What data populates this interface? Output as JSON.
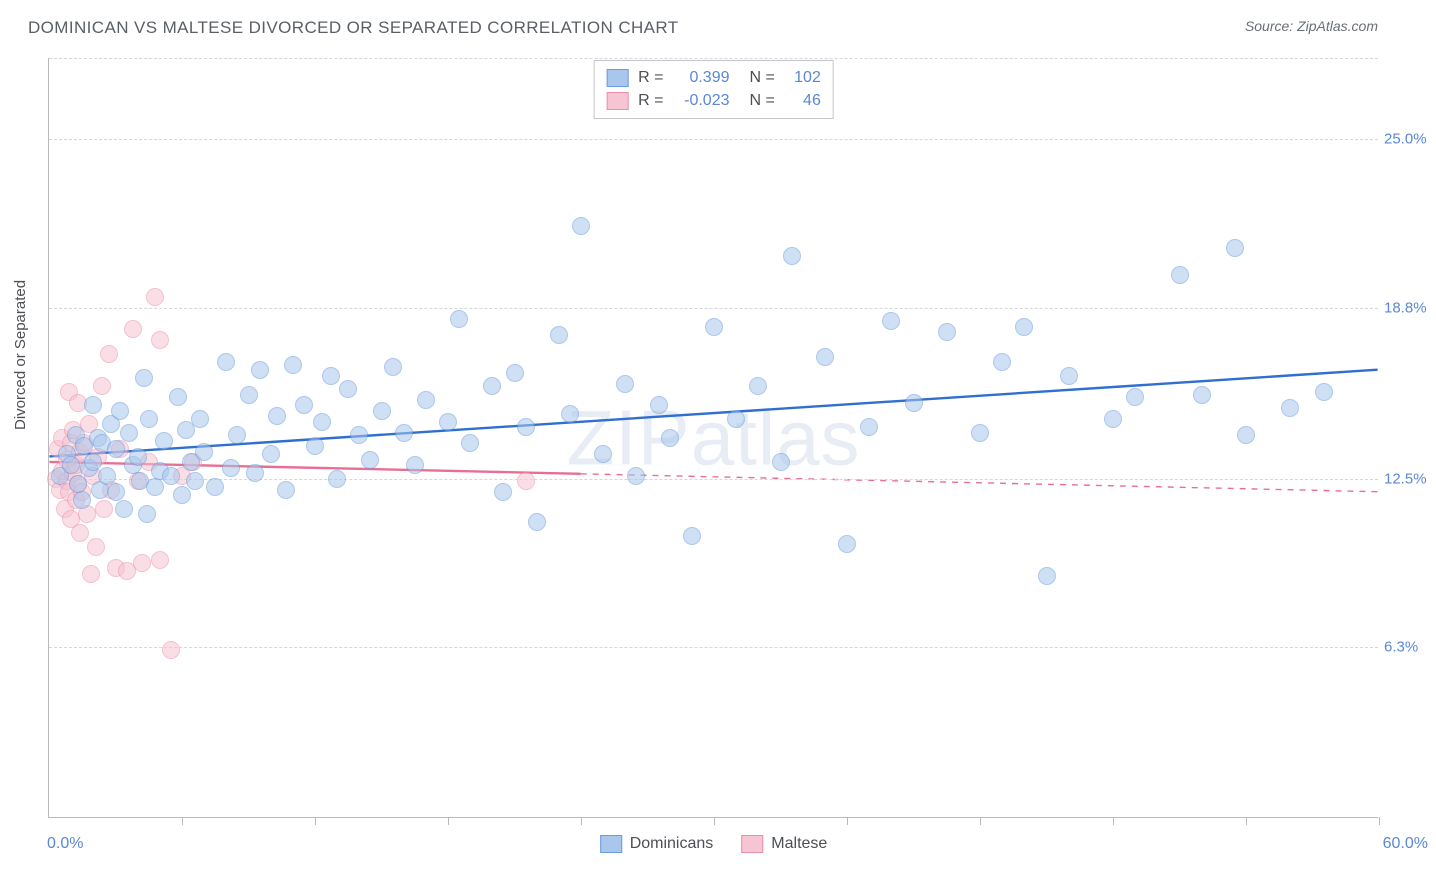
{
  "title": "DOMINICAN VS MALTESE DIVORCED OR SEPARATED CORRELATION CHART",
  "source": "Source: ZipAtlas.com",
  "ylabel": "Divorced or Separated",
  "watermark": "ZIPatlas",
  "chart": {
    "type": "scatter",
    "plot_bg": "#ffffff",
    "grid_color": "#d5d7da",
    "axis_color": "#b7b9bc",
    "xlim": [
      0,
      60
    ],
    "ylim": [
      0,
      28
    ],
    "x_tick_step": 6,
    "x_min_label": "0.0%",
    "x_max_label": "60.0%",
    "y_ticks": [
      {
        "v": 6.3,
        "label": "6.3%"
      },
      {
        "v": 12.5,
        "label": "12.5%"
      },
      {
        "v": 18.8,
        "label": "18.8%"
      },
      {
        "v": 25.0,
        "label": "25.0%"
      }
    ],
    "marker_radius": 9,
    "marker_opacity": 0.55,
    "line_width_solid": 2.4,
    "line_width_dash": 1.4,
    "series": [
      {
        "name": "Dominicans",
        "color_fill": "#a9c6ec",
        "color_stroke": "#6a9bdc",
        "line_color": "#2f6fd0",
        "R": "0.399",
        "N": "102",
        "trend": {
          "x1": 0,
          "y1": 13.3,
          "x2": 60,
          "y2": 16.5,
          "solid_until_x": 60
        },
        "points": [
          [
            0.5,
            12.6
          ],
          [
            0.8,
            13.4
          ],
          [
            1.0,
            13.0
          ],
          [
            1.2,
            14.1
          ],
          [
            1.3,
            12.3
          ],
          [
            1.5,
            11.7
          ],
          [
            1.6,
            13.7
          ],
          [
            1.8,
            12.9
          ],
          [
            2.0,
            13.1
          ],
          [
            2.0,
            15.2
          ],
          [
            2.2,
            14.0
          ],
          [
            2.3,
            12.1
          ],
          [
            2.4,
            13.8
          ],
          [
            2.6,
            12.6
          ],
          [
            2.8,
            14.5
          ],
          [
            3.0,
            12.0
          ],
          [
            3.0,
            13.6
          ],
          [
            3.2,
            15.0
          ],
          [
            3.4,
            11.4
          ],
          [
            3.6,
            14.2
          ],
          [
            3.8,
            13.0
          ],
          [
            4.0,
            13.3
          ],
          [
            4.1,
            12.4
          ],
          [
            4.3,
            16.2
          ],
          [
            4.4,
            11.2
          ],
          [
            4.5,
            14.7
          ],
          [
            4.8,
            12.2
          ],
          [
            5.0,
            12.8
          ],
          [
            5.2,
            13.9
          ],
          [
            5.5,
            12.6
          ],
          [
            5.8,
            15.5
          ],
          [
            6.0,
            11.9
          ],
          [
            6.2,
            14.3
          ],
          [
            6.4,
            13.1
          ],
          [
            6.6,
            12.4
          ],
          [
            6.8,
            14.7
          ],
          [
            7.0,
            13.5
          ],
          [
            7.5,
            12.2
          ],
          [
            8.0,
            16.8
          ],
          [
            8.2,
            12.9
          ],
          [
            8.5,
            14.1
          ],
          [
            9.0,
            15.6
          ],
          [
            9.3,
            12.7
          ],
          [
            9.5,
            16.5
          ],
          [
            10.0,
            13.4
          ],
          [
            10.3,
            14.8
          ],
          [
            10.7,
            12.1
          ],
          [
            11.0,
            16.7
          ],
          [
            11.5,
            15.2
          ],
          [
            12.0,
            13.7
          ],
          [
            12.3,
            14.6
          ],
          [
            12.7,
            16.3
          ],
          [
            13.0,
            12.5
          ],
          [
            13.5,
            15.8
          ],
          [
            14.0,
            14.1
          ],
          [
            14.5,
            13.2
          ],
          [
            15.0,
            15.0
          ],
          [
            15.5,
            16.6
          ],
          [
            16.0,
            14.2
          ],
          [
            16.5,
            13.0
          ],
          [
            17.0,
            15.4
          ],
          [
            18.0,
            14.6
          ],
          [
            18.5,
            18.4
          ],
          [
            19.0,
            13.8
          ],
          [
            20.0,
            15.9
          ],
          [
            20.5,
            12.0
          ],
          [
            21.0,
            16.4
          ],
          [
            21.5,
            14.4
          ],
          [
            22.0,
            10.9
          ],
          [
            23.0,
            17.8
          ],
          [
            23.5,
            14.9
          ],
          [
            24.0,
            21.8
          ],
          [
            25.0,
            13.4
          ],
          [
            26.0,
            16.0
          ],
          [
            26.5,
            12.6
          ],
          [
            27.5,
            15.2
          ],
          [
            28.0,
            14.0
          ],
          [
            29.0,
            10.4
          ],
          [
            30.0,
            18.1
          ],
          [
            31.0,
            14.7
          ],
          [
            32.0,
            15.9
          ],
          [
            33.0,
            13.1
          ],
          [
            33.5,
            20.7
          ],
          [
            35.0,
            17.0
          ],
          [
            36.0,
            10.1
          ],
          [
            37.0,
            14.4
          ],
          [
            38.0,
            18.3
          ],
          [
            39.0,
            15.3
          ],
          [
            40.5,
            17.9
          ],
          [
            42.0,
            14.2
          ],
          [
            43.0,
            16.8
          ],
          [
            44.0,
            18.1
          ],
          [
            45.0,
            8.9
          ],
          [
            46.0,
            16.3
          ],
          [
            48.0,
            14.7
          ],
          [
            49.0,
            15.5
          ],
          [
            51.0,
            20.0
          ],
          [
            52.0,
            15.6
          ],
          [
            53.5,
            21.0
          ],
          [
            54.0,
            14.1
          ],
          [
            56.0,
            15.1
          ],
          [
            57.5,
            15.7
          ]
        ]
      },
      {
        "name": "Maltese",
        "color_fill": "#f6c4d2",
        "color_stroke": "#ec8fa9",
        "line_color": "#e86f93",
        "R": "-0.023",
        "N": "46",
        "trend": {
          "x1": 0,
          "y1": 13.1,
          "x2": 60,
          "y2": 12.0,
          "solid_until_x": 24
        },
        "points": [
          [
            0.3,
            12.5
          ],
          [
            0.4,
            13.6
          ],
          [
            0.5,
            12.1
          ],
          [
            0.6,
            14.0
          ],
          [
            0.6,
            12.8
          ],
          [
            0.7,
            11.4
          ],
          [
            0.8,
            13.2
          ],
          [
            0.8,
            12.4
          ],
          [
            0.9,
            15.7
          ],
          [
            0.9,
            12.0
          ],
          [
            1.0,
            13.8
          ],
          [
            1.0,
            11.0
          ],
          [
            1.1,
            12.7
          ],
          [
            1.1,
            14.3
          ],
          [
            1.2,
            11.7
          ],
          [
            1.2,
            13.0
          ],
          [
            1.3,
            12.3
          ],
          [
            1.3,
            15.3
          ],
          [
            1.4,
            10.5
          ],
          [
            1.4,
            13.5
          ],
          [
            1.5,
            12.0
          ],
          [
            1.6,
            13.8
          ],
          [
            1.7,
            11.2
          ],
          [
            1.8,
            14.5
          ],
          [
            1.9,
            9.0
          ],
          [
            2.0,
            12.6
          ],
          [
            2.1,
            10.0
          ],
          [
            2.2,
            13.3
          ],
          [
            2.4,
            15.9
          ],
          [
            2.5,
            11.4
          ],
          [
            2.7,
            17.1
          ],
          [
            2.8,
            12.1
          ],
          [
            3.0,
            9.2
          ],
          [
            3.2,
            13.6
          ],
          [
            3.5,
            9.1
          ],
          [
            3.8,
            18.0
          ],
          [
            4.0,
            12.4
          ],
          [
            4.2,
            9.4
          ],
          [
            4.5,
            13.1
          ],
          [
            4.8,
            19.2
          ],
          [
            5.0,
            17.6
          ],
          [
            5.0,
            9.5
          ],
          [
            5.5,
            6.2
          ],
          [
            6.0,
            12.6
          ],
          [
            6.5,
            13.1
          ],
          [
            21.5,
            12.4
          ]
        ]
      }
    ],
    "bottom_legend": [
      {
        "label": "Dominicans",
        "fill": "#a9c6ec",
        "stroke": "#6a9bdc"
      },
      {
        "label": "Maltese",
        "fill": "#f6c4d2",
        "stroke": "#ec8fa9"
      }
    ]
  }
}
